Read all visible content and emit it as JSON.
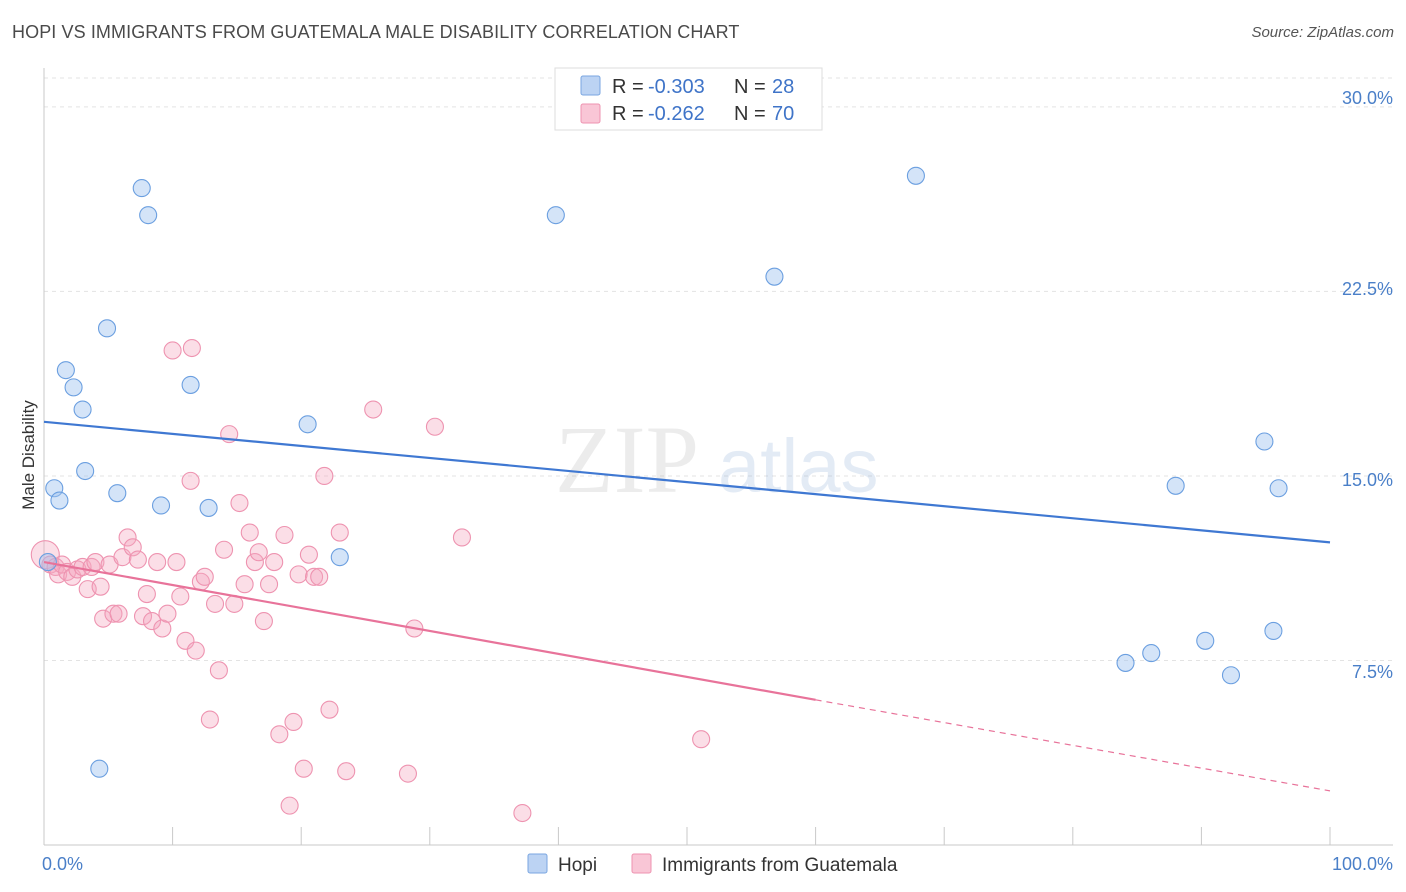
{
  "title": "HOPI VS IMMIGRANTS FROM GUATEMALA MALE DISABILITY CORRELATION CHART",
  "source": "Source: ZipAtlas.com",
  "watermark": {
    "zip": "ZIP",
    "atlas": "atlas"
  },
  "legend": {
    "r_label": "R =",
    "n_label": "N =",
    "rows": [
      {
        "r": "-0.303",
        "n": "28"
      },
      {
        "r": "-0.262",
        "n": "70"
      }
    ]
  },
  "chart_data": {
    "type": "scatter",
    "title": "HOPI VS IMMIGRANTS FROM GUATEMALA MALE DISABILITY CORRELATION CHART",
    "xlabel": "",
    "ylabel": "Male Disability",
    "xlim": [
      0,
      100
    ],
    "ylim": [
      0,
      31.5
    ],
    "x_tick_labels": [
      "0.0%",
      "100.0%"
    ],
    "y_ticks": [
      7.5,
      15.0,
      22.5,
      30.0
    ],
    "y_tick_labels": [
      "7.5%",
      "15.0%",
      "22.5%",
      "30.0%"
    ],
    "colors": {
      "hopi": "#6b9fe0",
      "guatemala": "#ee93b0",
      "hopi_line": "#3f78d2",
      "guatemala_line": "#e8739a"
    },
    "series": [
      {
        "name": "Hopi",
        "r": -0.303,
        "n": 28,
        "trend": {
          "x0": 0,
          "y0": 17.2,
          "x1": 100,
          "y1": 12.3
        },
        "points": [
          [
            0.3,
            11.5
          ],
          [
            0.8,
            14.5
          ],
          [
            1.2,
            14.0
          ],
          [
            1.7,
            19.3
          ],
          [
            2.3,
            18.6
          ],
          [
            3.0,
            17.7
          ],
          [
            3.2,
            15.2
          ],
          [
            4.3,
            3.1
          ],
          [
            4.9,
            21.0
          ],
          [
            5.7,
            14.3
          ],
          [
            7.6,
            26.7
          ],
          [
            8.1,
            25.6
          ],
          [
            9.1,
            13.8
          ],
          [
            11.4,
            18.7
          ],
          [
            12.8,
            13.7
          ],
          [
            20.5,
            17.1
          ],
          [
            23.0,
            11.7
          ],
          [
            39.8,
            25.6
          ],
          [
            56.8,
            23.1
          ],
          [
            67.8,
            27.2
          ],
          [
            84.1,
            7.4
          ],
          [
            86.1,
            7.8
          ],
          [
            88.0,
            14.6
          ],
          [
            90.3,
            8.3
          ],
          [
            92.3,
            6.9
          ],
          [
            94.9,
            16.4
          ],
          [
            95.6,
            8.7
          ],
          [
            96.0,
            14.5
          ]
        ]
      },
      {
        "name": "Immigrants from Guatemala",
        "r": -0.262,
        "n": 70,
        "trend": {
          "x0": 0,
          "y0": 11.5,
          "x1": 60,
          "y1": 5.9,
          "dash_x1": 100,
          "dash_y1": 2.2
        },
        "points": [
          [
            0.1,
            11.8
          ],
          [
            0.5,
            11.4
          ],
          [
            0.9,
            11.3
          ],
          [
            1.1,
            11.0
          ],
          [
            1.4,
            11.4
          ],
          [
            1.8,
            11.1
          ],
          [
            2.2,
            10.9
          ],
          [
            2.6,
            11.2
          ],
          [
            3.0,
            11.3
          ],
          [
            3.4,
            10.4
          ],
          [
            3.7,
            11.3
          ],
          [
            4.0,
            11.5
          ],
          [
            4.4,
            10.5
          ],
          [
            4.6,
            9.2
          ],
          [
            5.1,
            11.4
          ],
          [
            5.4,
            9.4
          ],
          [
            5.8,
            9.4
          ],
          [
            6.1,
            11.7
          ],
          [
            6.5,
            12.5
          ],
          [
            6.9,
            12.1
          ],
          [
            7.3,
            11.6
          ],
          [
            7.7,
            9.3
          ],
          [
            8.0,
            10.2
          ],
          [
            8.4,
            9.1
          ],
          [
            8.8,
            11.5
          ],
          [
            9.2,
            8.8
          ],
          [
            9.6,
            9.4
          ],
          [
            10.0,
            20.1
          ],
          [
            10.3,
            11.5
          ],
          [
            10.6,
            10.1
          ],
          [
            11.0,
            8.3
          ],
          [
            11.4,
            14.8
          ],
          [
            11.8,
            7.9
          ],
          [
            12.2,
            10.7
          ],
          [
            12.5,
            10.9
          ],
          [
            12.9,
            5.1
          ],
          [
            13.3,
            9.8
          ],
          [
            13.6,
            7.1
          ],
          [
            14.0,
            12.0
          ],
          [
            14.4,
            16.7
          ],
          [
            14.8,
            9.8
          ],
          [
            15.2,
            13.9
          ],
          [
            15.6,
            10.6
          ],
          [
            16.0,
            12.7
          ],
          [
            16.4,
            11.5
          ],
          [
            16.7,
            11.9
          ],
          [
            17.1,
            9.1
          ],
          [
            17.5,
            10.6
          ],
          [
            17.9,
            11.5
          ],
          [
            18.3,
            4.5
          ],
          [
            18.7,
            12.6
          ],
          [
            19.1,
            1.6
          ],
          [
            19.4,
            5.0
          ],
          [
            19.8,
            11.0
          ],
          [
            20.2,
            3.1
          ],
          [
            20.6,
            11.8
          ],
          [
            21.0,
            10.9
          ],
          [
            21.4,
            10.9
          ],
          [
            21.8,
            15.0
          ],
          [
            22.2,
            5.5
          ],
          [
            23.0,
            12.7
          ],
          [
            23.5,
            3.0
          ],
          [
            25.6,
            17.7
          ],
          [
            28.3,
            2.9
          ],
          [
            28.8,
            8.8
          ],
          [
            30.4,
            17.0
          ],
          [
            32.5,
            12.5
          ],
          [
            37.2,
            1.3
          ],
          [
            51.1,
            4.3
          ],
          [
            11.5,
            20.2
          ]
        ]
      }
    ]
  },
  "bottom_legend": [
    {
      "label": "Hopi"
    },
    {
      "label": "Immigrants from Guatemala"
    }
  ]
}
